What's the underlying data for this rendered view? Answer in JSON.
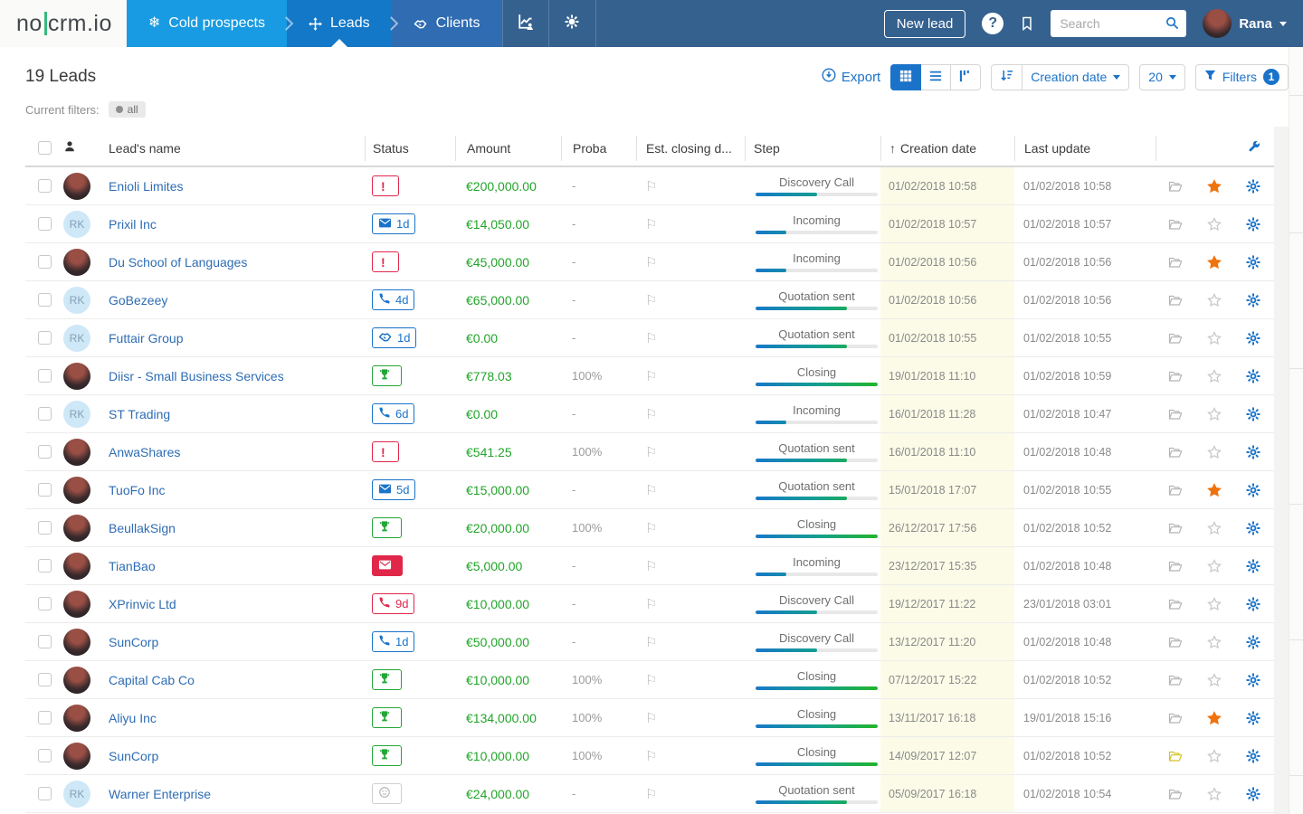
{
  "navbar": {
    "logo": {
      "part1": "no",
      "part2": "crm",
      "part3": ".io"
    },
    "tabs": [
      {
        "label": "Cold prospects",
        "icon": "snowflake-icon",
        "active": false
      },
      {
        "label": "Leads",
        "icon": "move-icon",
        "active": true
      },
      {
        "label": "Clients",
        "icon": "handshake-icon",
        "active": false
      }
    ],
    "new_lead_label": "New lead",
    "help_label": "?",
    "search_placeholder": "Search",
    "user_name": "Rana"
  },
  "toolbar": {
    "title": "19 Leads",
    "export_label": "Export",
    "sort_label": "Creation date",
    "per_page": "20",
    "filters_label": "Filters",
    "filters_count": "1"
  },
  "filters_bar": {
    "label": "Current filters:",
    "active_filter": "all"
  },
  "icons": {
    "flag": "⚐",
    "arrow_up": "↑",
    "snowflake": "❄",
    "alert": "!"
  },
  "colors": {
    "accent_blue": "#1a73c9",
    "green": "#23a637",
    "red": "#e0274a",
    "orange_star": "#f0720c",
    "yellow_cell": "#fbfbe8",
    "navbar": "#35618f"
  },
  "table": {
    "columns": [
      "",
      "",
      "Lead's name",
      "Status",
      "Amount",
      "Proba",
      "Est. closing d...",
      "Step",
      "Creation date",
      "Last update",
      ""
    ],
    "rows": [
      {
        "name": "Enioli Limites",
        "avatar": {
          "type": "photo",
          "initials": ""
        },
        "status": {
          "icon": "alert-icon",
          "style": "red",
          "days": ""
        },
        "amount": "€200,000.00",
        "proba": "-",
        "step": {
          "label": "Discovery Call",
          "progress": 50
        },
        "created": "01/02/2018 10:58",
        "updated": "01/02/2018 10:58",
        "starred": true,
        "folder": "default"
      },
      {
        "name": "Prixil Inc",
        "avatar": {
          "type": "initials",
          "initials": "RK"
        },
        "status": {
          "icon": "mail-icon",
          "style": "blue",
          "days": "1d"
        },
        "amount": "€14,050.00",
        "proba": "-",
        "step": {
          "label": "Incoming",
          "progress": 25
        },
        "created": "01/02/2018 10:57",
        "updated": "01/02/2018 10:57",
        "starred": false,
        "folder": "default"
      },
      {
        "name": "Du School of Languages",
        "avatar": {
          "type": "photo",
          "initials": ""
        },
        "status": {
          "icon": "alert-icon",
          "style": "red",
          "days": ""
        },
        "amount": "€45,000.00",
        "proba": "-",
        "step": {
          "label": "Incoming",
          "progress": 25
        },
        "created": "01/02/2018 10:56",
        "updated": "01/02/2018 10:56",
        "starred": true,
        "folder": "default"
      },
      {
        "name": "GoBezeey",
        "avatar": {
          "type": "initials",
          "initials": "RK"
        },
        "status": {
          "icon": "phone-icon",
          "style": "blue",
          "days": "4d"
        },
        "amount": "€65,000.00",
        "proba": "-",
        "step": {
          "label": "Quotation sent",
          "progress": 75
        },
        "created": "01/02/2018 10:56",
        "updated": "01/02/2018 10:56",
        "starred": false,
        "folder": "default"
      },
      {
        "name": "Futtair Group",
        "avatar": {
          "type": "initials",
          "initials": "RK"
        },
        "status": {
          "icon": "handshake-icon",
          "style": "blue",
          "days": "1d"
        },
        "amount": "€0.00",
        "proba": "-",
        "step": {
          "label": "Quotation sent",
          "progress": 75
        },
        "created": "01/02/2018 10:55",
        "updated": "01/02/2018 10:55",
        "starred": false,
        "folder": "default"
      },
      {
        "name": "Diisr - Small Business Services",
        "avatar": {
          "type": "photo",
          "initials": ""
        },
        "status": {
          "icon": "trophy-icon",
          "style": "green",
          "days": ""
        },
        "amount": "€778.03",
        "proba": "100%",
        "step": {
          "label": "Closing",
          "progress": 100
        },
        "created": "19/01/2018 11:10",
        "updated": "01/02/2018 10:59",
        "starred": false,
        "folder": "default"
      },
      {
        "name": "ST Trading",
        "avatar": {
          "type": "initials",
          "initials": "RK"
        },
        "status": {
          "icon": "phone-icon",
          "style": "blue",
          "days": "6d"
        },
        "amount": "€0.00",
        "proba": "-",
        "step": {
          "label": "Incoming",
          "progress": 25
        },
        "created": "16/01/2018 11:28",
        "updated": "01/02/2018 10:47",
        "starred": false,
        "folder": "default"
      },
      {
        "name": "AnwaShares",
        "avatar": {
          "type": "photo",
          "initials": ""
        },
        "status": {
          "icon": "alert-icon",
          "style": "red",
          "days": ""
        },
        "amount": "€541.25",
        "proba": "100%",
        "step": {
          "label": "Quotation sent",
          "progress": 75
        },
        "created": "16/01/2018 11:10",
        "updated": "01/02/2018 10:48",
        "starred": false,
        "folder": "default"
      },
      {
        "name": "TuoFo Inc",
        "avatar": {
          "type": "photo",
          "initials": ""
        },
        "status": {
          "icon": "mail-icon",
          "style": "blue",
          "days": "5d"
        },
        "amount": "€15,000.00",
        "proba": "-",
        "step": {
          "label": "Quotation sent",
          "progress": 75
        },
        "created": "15/01/2018 17:07",
        "updated": "01/02/2018 10:55",
        "starred": true,
        "folder": "default"
      },
      {
        "name": "BeullakSign",
        "avatar": {
          "type": "photo",
          "initials": ""
        },
        "status": {
          "icon": "trophy-icon",
          "style": "green",
          "days": ""
        },
        "amount": "€20,000.00",
        "proba": "100%",
        "step": {
          "label": "Closing",
          "progress": 100
        },
        "created": "26/12/2017 17:56",
        "updated": "01/02/2018 10:52",
        "starred": false,
        "folder": "default"
      },
      {
        "name": "TianBao",
        "avatar": {
          "type": "photo",
          "initials": ""
        },
        "status": {
          "icon": "mail-icon",
          "style": "solid-red",
          "days": ""
        },
        "amount": "€5,000.00",
        "proba": "-",
        "step": {
          "label": "Incoming",
          "progress": 25
        },
        "created": "23/12/2017 15:35",
        "updated": "01/02/2018 10:48",
        "starred": false,
        "folder": "default"
      },
      {
        "name": "XPrinvic Ltd",
        "avatar": {
          "type": "photo",
          "initials": ""
        },
        "status": {
          "icon": "phone-icon",
          "style": "red",
          "days": "9d"
        },
        "amount": "€10,000.00",
        "proba": "-",
        "step": {
          "label": "Discovery Call",
          "progress": 50
        },
        "created": "19/12/2017 11:22",
        "updated": "23/01/2018 03:01",
        "starred": false,
        "folder": "default"
      },
      {
        "name": "SunCorp",
        "avatar": {
          "type": "photo",
          "initials": ""
        },
        "status": {
          "icon": "phone-icon",
          "style": "blue",
          "days": "1d"
        },
        "amount": "€50,000.00",
        "proba": "-",
        "step": {
          "label": "Discovery Call",
          "progress": 50
        },
        "created": "13/12/2017 11:20",
        "updated": "01/02/2018 10:48",
        "starred": false,
        "folder": "default"
      },
      {
        "name": "Capital Cab Co",
        "avatar": {
          "type": "photo",
          "initials": ""
        },
        "status": {
          "icon": "trophy-icon",
          "style": "green",
          "days": ""
        },
        "amount": "€10,000.00",
        "proba": "100%",
        "step": {
          "label": "Closing",
          "progress": 100
        },
        "created": "07/12/2017 15:22",
        "updated": "01/02/2018 10:52",
        "starred": false,
        "folder": "default"
      },
      {
        "name": "Aliyu Inc",
        "avatar": {
          "type": "photo",
          "initials": ""
        },
        "status": {
          "icon": "trophy-icon",
          "style": "green",
          "days": ""
        },
        "amount": "€134,000.00",
        "proba": "100%",
        "step": {
          "label": "Closing",
          "progress": 100
        },
        "created": "13/11/2017 16:18",
        "updated": "19/01/2018 15:16",
        "starred": true,
        "folder": "default"
      },
      {
        "name": "SunCorp",
        "avatar": {
          "type": "photo",
          "initials": ""
        },
        "status": {
          "icon": "trophy-icon",
          "style": "green",
          "days": ""
        },
        "amount": "€10,000.00",
        "proba": "100%",
        "step": {
          "label": "Closing",
          "progress": 100
        },
        "created": "14/09/2017 12:07",
        "updated": "01/02/2018 10:52",
        "starred": false,
        "folder": "yellow"
      },
      {
        "name": "Warner Enterprise",
        "avatar": {
          "type": "initials",
          "initials": "RK"
        },
        "status": {
          "icon": "smiley-icon",
          "style": "grey",
          "days": ""
        },
        "amount": "€24,000.00",
        "proba": "-",
        "step": {
          "label": "Quotation sent",
          "progress": 75
        },
        "created": "05/09/2017 16:18",
        "updated": "01/02/2018 10:54",
        "starred": false,
        "folder": "default"
      }
    ]
  }
}
